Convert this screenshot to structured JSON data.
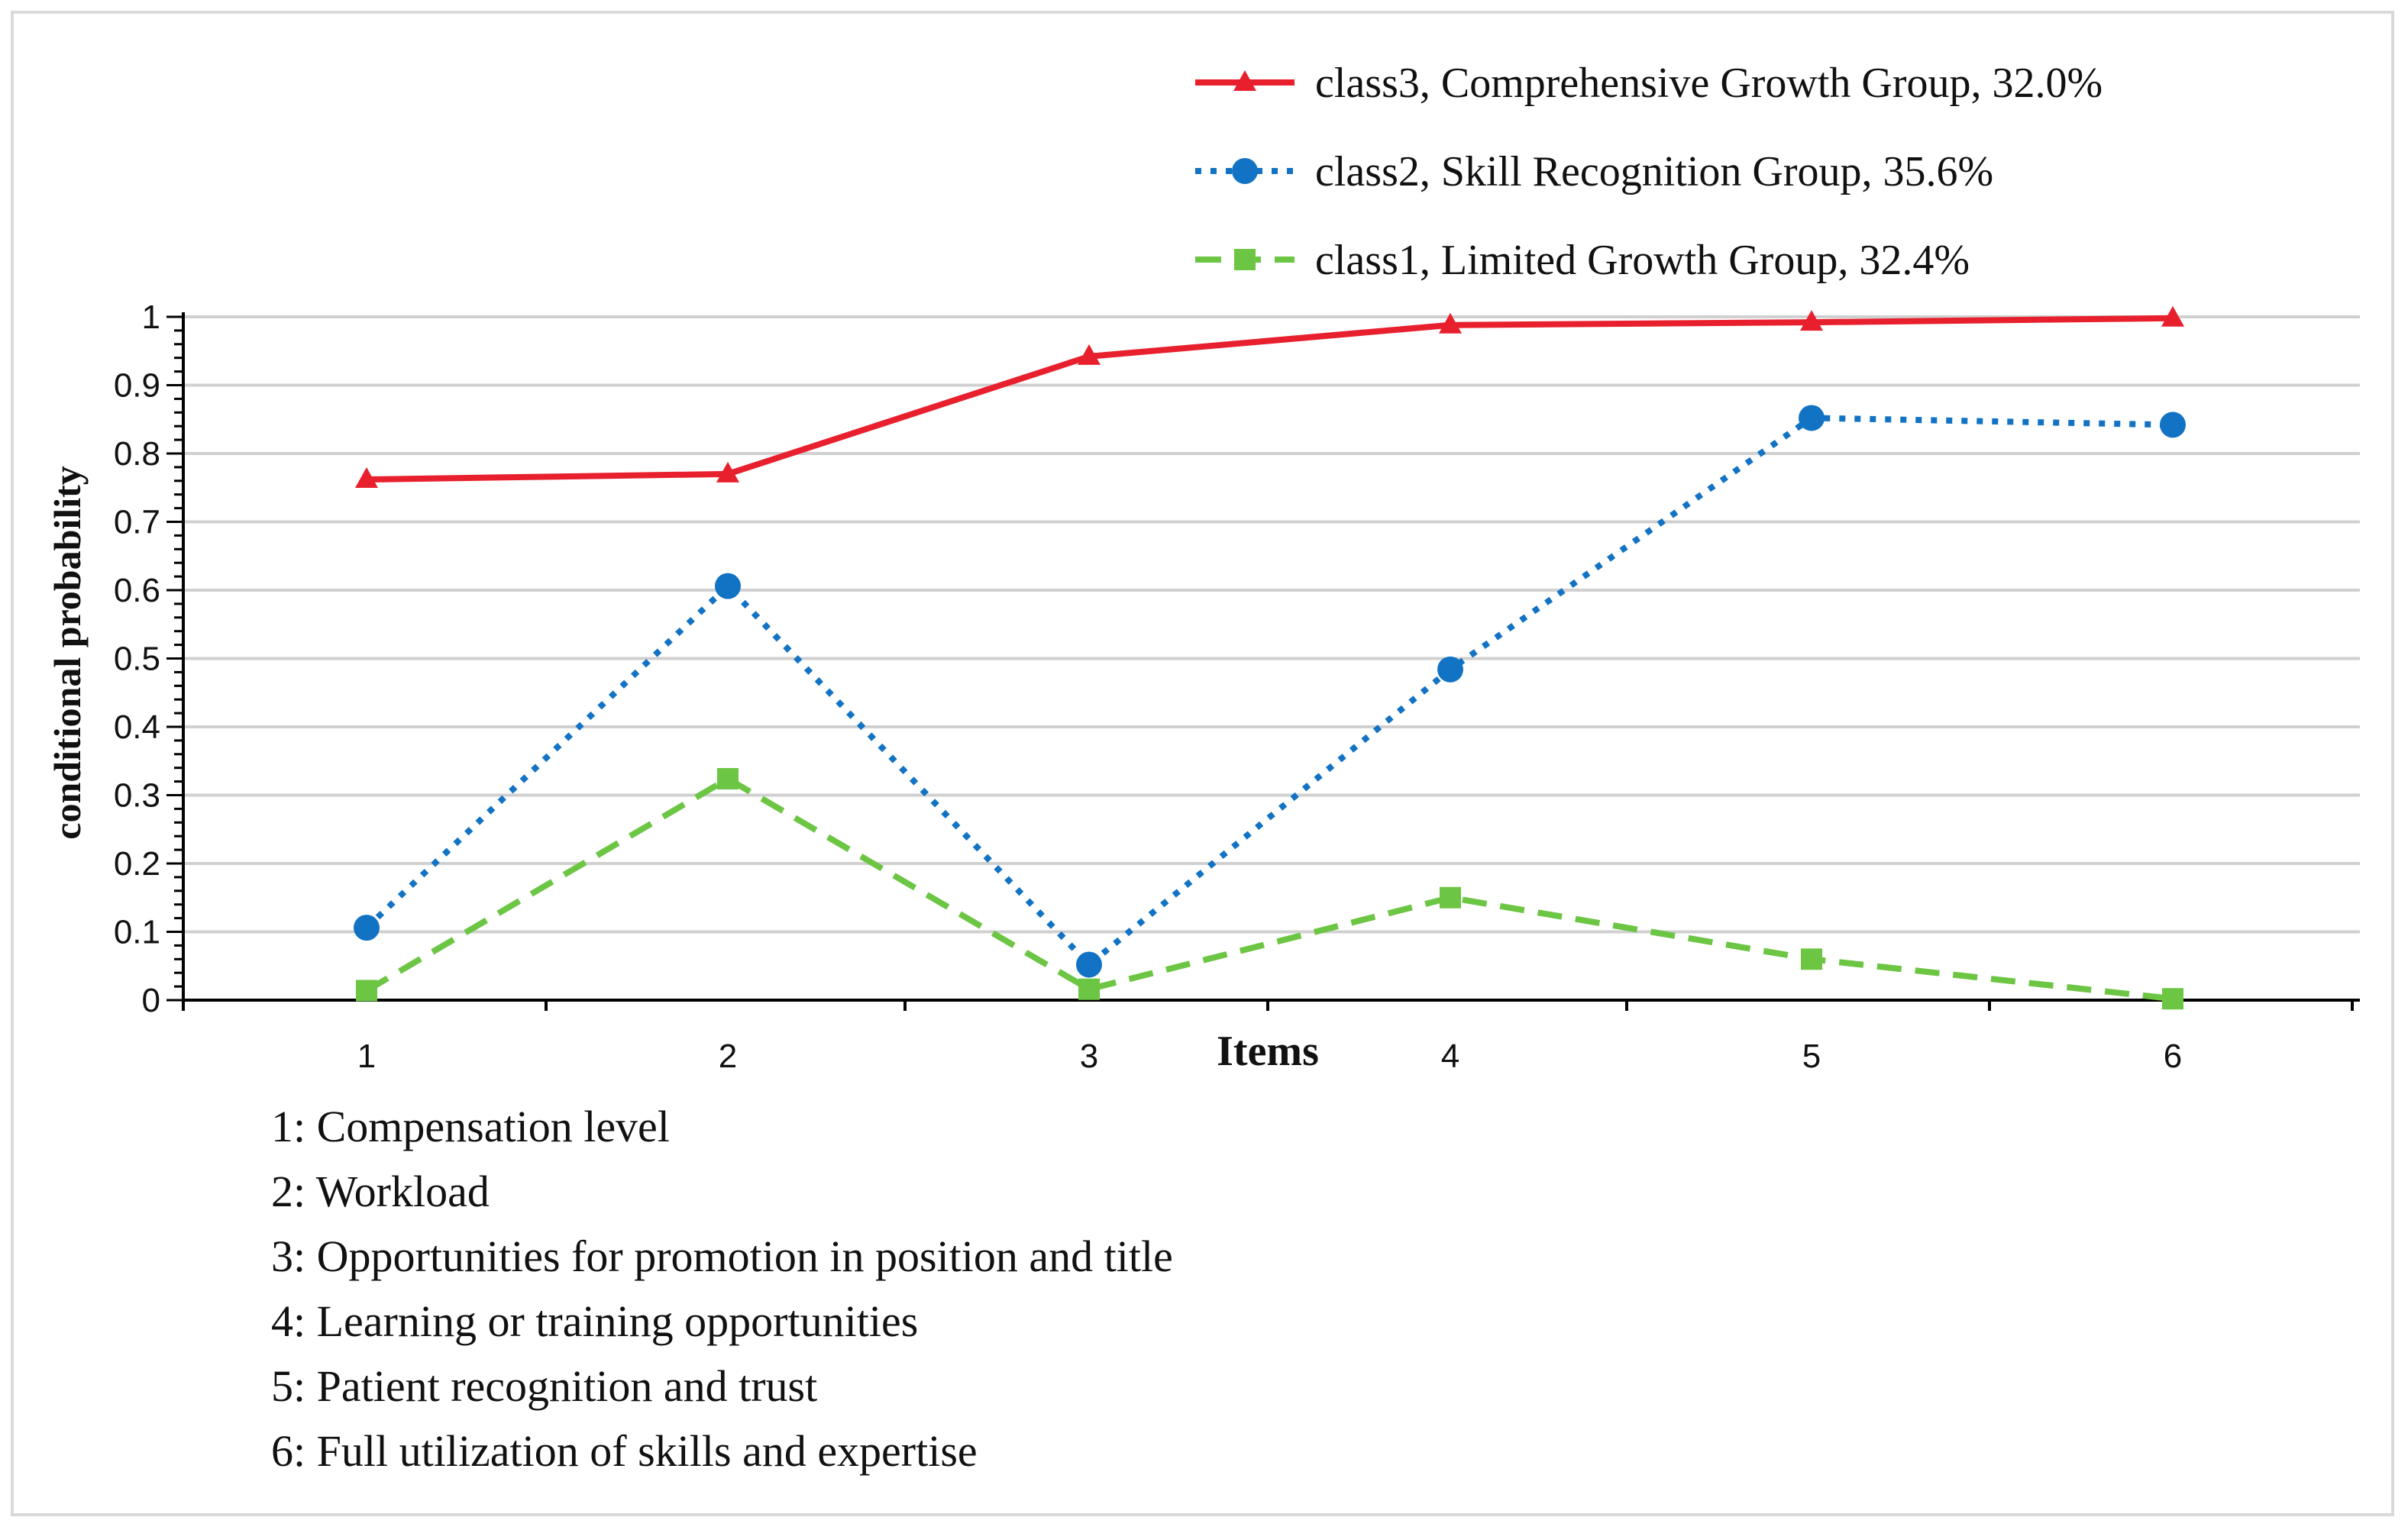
{
  "chart_data": {
    "type": "line",
    "title": "",
    "xlabel": "Items",
    "ylabel": "conditional probability",
    "x": [
      "1",
      "2",
      "3",
      "4",
      "5",
      "6"
    ],
    "y_ticks": [
      "0",
      "0.1",
      "0.2",
      "0.3",
      "0.4",
      "0.5",
      "0.6",
      "0.7",
      "0.8",
      "0.9",
      "1"
    ],
    "ylim": [
      0,
      1
    ],
    "grid": "horizontal",
    "legend_position": "top-right",
    "series": [
      {
        "name": "class3, Comprehensive Growth Group, 32.0%",
        "values": [
          0.762,
          0.77,
          0.942,
          0.988,
          0.992,
          0.998
        ],
        "color": "#e8202e",
        "line_style": "solid",
        "marker": "triangle"
      },
      {
        "name": "class2, Skill Recognition Group, 35.6%",
        "values": [
          0.106,
          0.606,
          0.052,
          0.484,
          0.852,
          0.842
        ],
        "color": "#1273c4",
        "line_style": "dotted",
        "marker": "circle"
      },
      {
        "name": "class1, Limited Growth Group, 32.4%",
        "values": [
          0.014,
          0.324,
          0.016,
          0.15,
          0.06,
          0.002
        ],
        "color": "#6cc644",
        "line_style": "dashed",
        "marker": "square"
      }
    ],
    "item_notes": [
      "1: Compensation level",
      "2: Workload",
      "3: Opportunities for promotion in position and title",
      "4: Learning or training opportunities",
      "5: Patient recognition and trust",
      "6: Full utilization of skills and expertise"
    ]
  }
}
